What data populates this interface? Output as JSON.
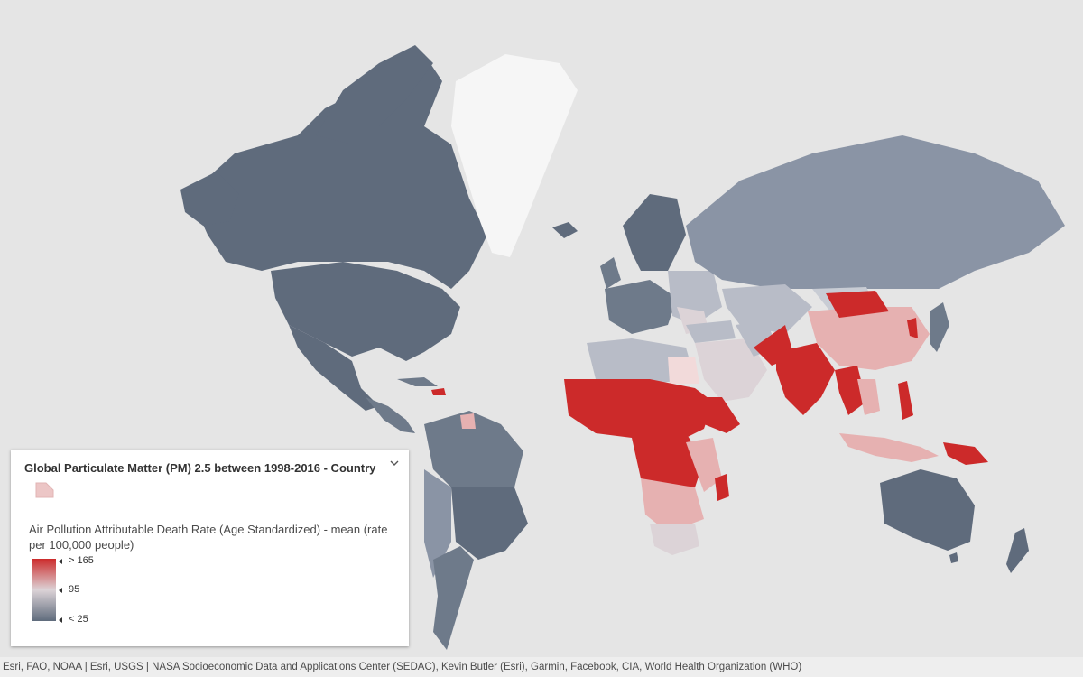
{
  "colors": {
    "ocean": "#e5e5e5",
    "low": "#5f6b7c",
    "mid": "#dcd3d7",
    "high": "#cc2a2a",
    "ice": "#f6f6f6",
    "light_red": "#e6b1b1",
    "pale": "#c8ccd4",
    "slate_light": "#8a94a5"
  },
  "legend": {
    "title": "Global Particulate Matter (PM) 2.5 between 1998-2016 - Country",
    "collapse_icon": "chevron-down-icon",
    "field_label": "Air Pollution Attributable Death Rate (Age Standardized) - mean (rate per 100,000 people)",
    "ramp": {
      "high_label": "> 165",
      "mid_label": "95",
      "low_label": "< 25",
      "high_value": 165,
      "mid_value": 95,
      "low_value": 25
    }
  },
  "attribution": "Esri, FAO, NOAA | Esri, USGS | NASA Socioeconomic Data and Applications Center (SEDAC), Kevin Butler (Esri), Garmin, Facebook, CIA, World Health Organization (WHO)"
}
